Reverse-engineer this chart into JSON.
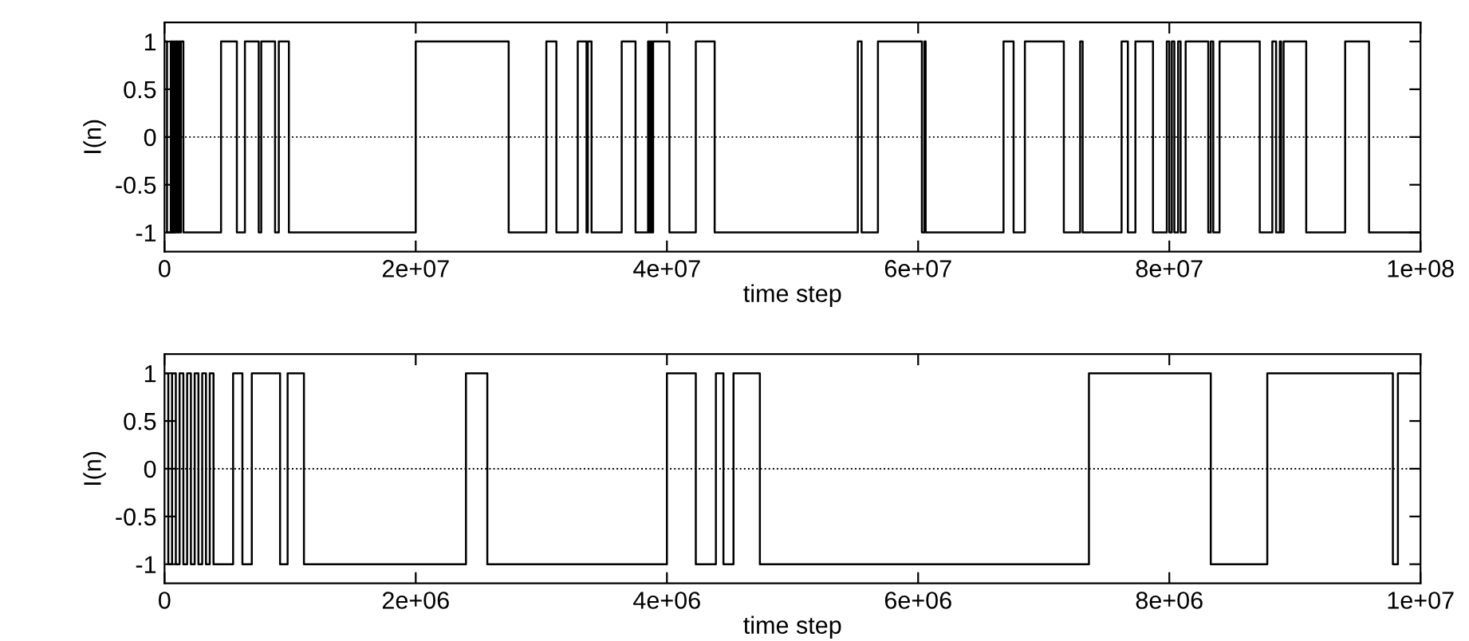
{
  "chart_data": [
    {
      "type": "step",
      "xlabel": "time step",
      "ylabel": "I(n)",
      "xlim": [
        0,
        100000000
      ],
      "ylim": [
        -1.2,
        1.2
      ],
      "xticks": [
        0,
        {
          "value": 20000000,
          "label": "2e+07"
        },
        {
          "value": 40000000,
          "label": "4e+07"
        },
        {
          "value": 60000000,
          "label": "6e+07"
        },
        {
          "value": 80000000,
          "label": "8e+07"
        },
        {
          "value": 100000000,
          "label": "1e+08"
        }
      ],
      "yticks": [
        -1,
        -0.5,
        0,
        0.5,
        1
      ],
      "grid": false,
      "legend": false,
      "line_style": "solid",
      "marker": "none",
      "ref_lines": [
        {
          "axis": "y",
          "value": 0,
          "line_style": "dotted",
          "color": "#000000"
        }
      ],
      "series": [
        {
          "color": "#000000",
          "x": [
            0,
            200000,
            500000,
            600000,
            700000,
            800000,
            900000,
            1000000,
            1100000,
            1200000,
            1300000,
            1500000,
            4500000,
            5760000,
            6400000,
            7500000,
            7700000,
            8800000,
            9100000,
            9900000,
            20000000,
            27400000,
            30400000,
            31200000,
            32900000,
            33600000,
            33700000,
            34000000,
            36400000,
            37500000,
            38500000,
            38600000,
            38700000,
            38800000,
            38900000,
            40200000,
            42300000,
            43800000,
            55200000,
            55500000,
            56800000,
            60300000,
            60500000,
            60600000,
            66800000,
            67600000,
            68500000,
            71600000,
            72900000,
            73100000,
            76200000,
            76700000,
            77300000,
            78700000,
            79800000,
            80000000,
            80200000,
            80400000,
            80700000,
            80900000,
            81300000,
            83100000,
            83300000,
            83500000,
            84000000,
            87200000,
            88200000,
            88500000,
            88800000,
            88900000,
            89100000,
            90900000,
            94000000,
            95900000,
            100000000
          ],
          "values": [
            1,
            -1,
            1,
            -1,
            1,
            -1,
            1,
            -1,
            1,
            -1,
            1,
            -1,
            1,
            -1,
            1,
            -1,
            1,
            -1,
            1,
            -1,
            1,
            -1,
            1,
            -1,
            1,
            -1,
            1,
            -1,
            1,
            -1,
            1,
            -1,
            1,
            -1,
            1,
            -1,
            1,
            -1,
            1,
            -1,
            1,
            -1,
            1,
            -1,
            1,
            -1,
            1,
            -1,
            1,
            -1,
            1,
            -1,
            1,
            -1,
            1,
            -1,
            1,
            -1,
            1,
            -1,
            1,
            -1,
            1,
            -1,
            1,
            -1,
            1,
            -1,
            1,
            -1,
            1,
            -1,
            1,
            -1,
            -1
          ]
        }
      ]
    },
    {
      "type": "step",
      "xlabel": "time step",
      "ylabel": "I(n)",
      "xlim": [
        0,
        10000000
      ],
      "ylim": [
        -1.2,
        1.2
      ],
      "xticks": [
        0,
        {
          "value": 2000000,
          "label": "2e+06"
        },
        {
          "value": 4000000,
          "label": "4e+06"
        },
        {
          "value": 6000000,
          "label": "6e+06"
        },
        {
          "value": 8000000,
          "label": "8e+06"
        },
        {
          "value": 10000000,
          "label": "1e+07"
        }
      ],
      "yticks": [
        -1,
        -0.5,
        0,
        0.5,
        1
      ],
      "grid": false,
      "legend": false,
      "line_style": "solid",
      "marker": "none",
      "ref_lines": [
        {
          "axis": "y",
          "value": 0,
          "line_style": "dotted",
          "color": "#000000"
        }
      ],
      "series": [
        {
          "color": "#000000",
          "x": [
            0,
            30000,
            60000,
            90000,
            120000,
            150000,
            180000,
            210000,
            240000,
            270000,
            300000,
            330000,
            360000,
            390000,
            420000,
            546000,
            620000,
            695000,
            920000,
            980000,
            1110000,
            2400000,
            2570000,
            4000000,
            4230000,
            4390000,
            4450000,
            4530000,
            4740000,
            7360000,
            8330000,
            8780000,
            9780000,
            9820000,
            10000000
          ],
          "values": [
            1,
            -1,
            1,
            -1,
            1,
            -1,
            1,
            -1,
            1,
            -1,
            1,
            -1,
            1,
            -1,
            -1,
            1,
            -1,
            1,
            -1,
            1,
            -1,
            1,
            -1,
            1,
            -1,
            1,
            -1,
            1,
            -1,
            1,
            -1,
            1,
            -1,
            1,
            1
          ]
        }
      ]
    }
  ]
}
